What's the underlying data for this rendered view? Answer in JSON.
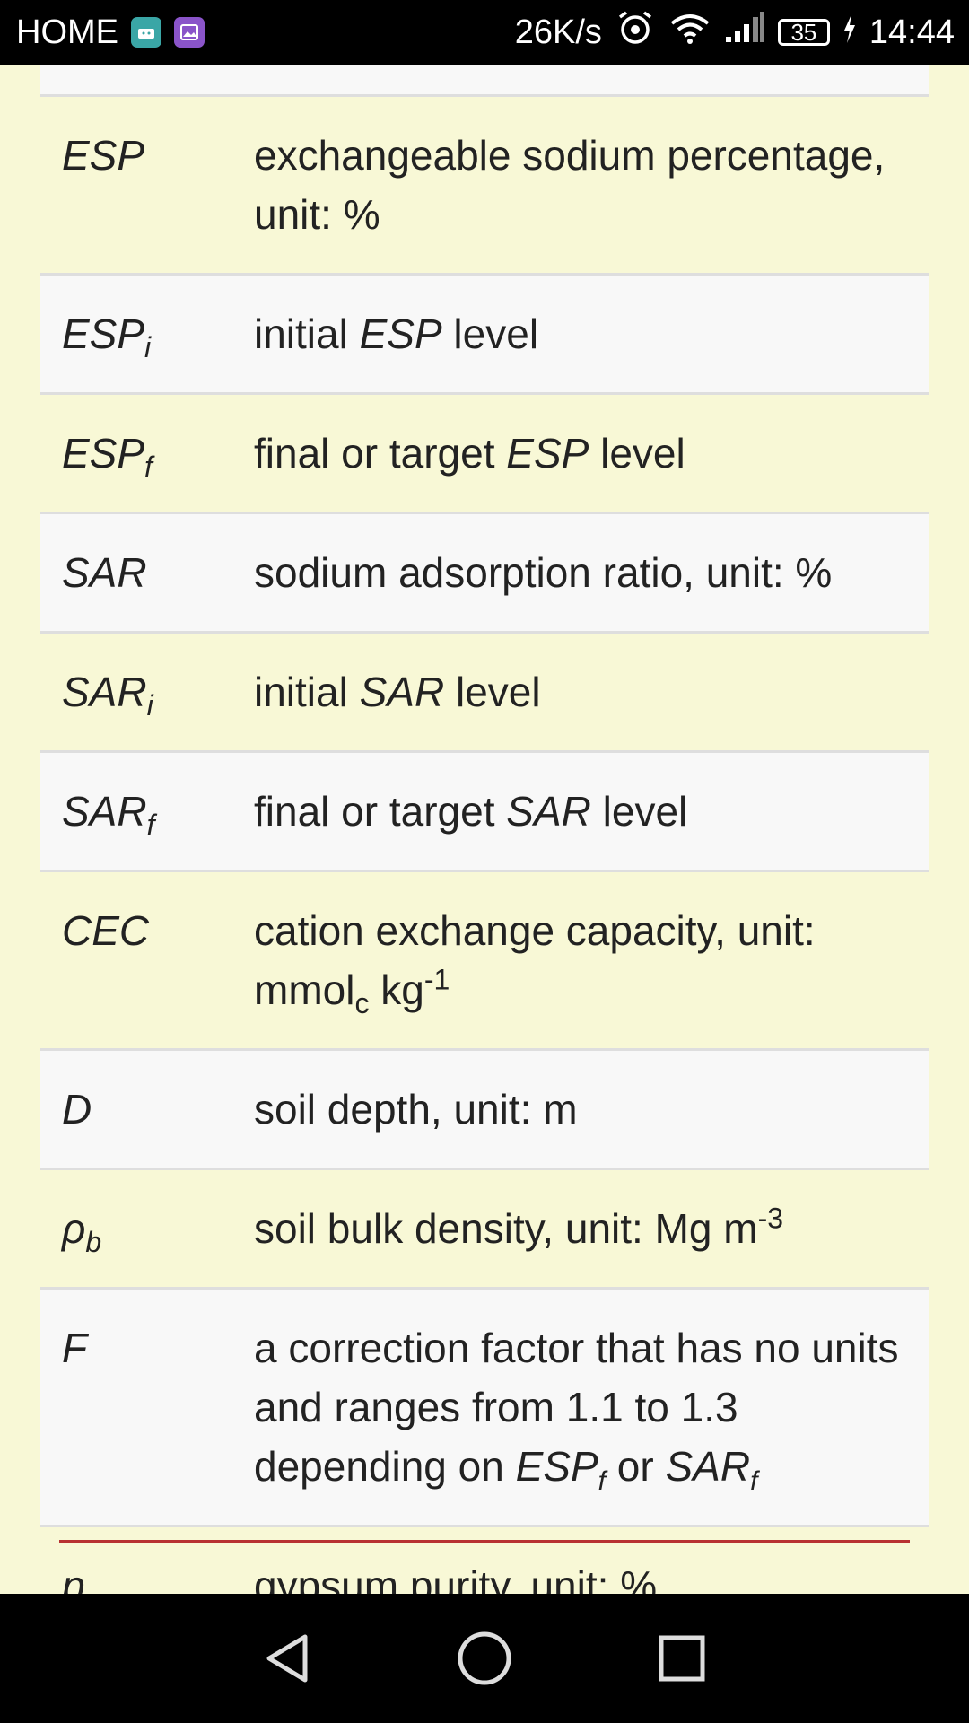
{
  "status_bar": {
    "carrier": "HOME",
    "speed": "26K/s",
    "battery": "35",
    "time": "14:44"
  },
  "table": {
    "rows": [
      {
        "symbol": "ESP",
        "desc": "exchangeable sodium percentage, unit: %"
      },
      {
        "symbol": "ESP",
        "sub": "i",
        "desc_pre": "initial ",
        "desc_it": "ESP",
        "desc_post": " level"
      },
      {
        "symbol": "ESP",
        "sub": "f",
        "desc_pre": "final or target ",
        "desc_it": "ESP",
        "desc_post": " level"
      },
      {
        "symbol": "SAR",
        "desc": "sodium adsorption ratio, unit: %"
      },
      {
        "symbol": "SAR",
        "sub": "i",
        "desc_pre": "initial ",
        "desc_it": "SAR",
        "desc_post": " level"
      },
      {
        "symbol": "SAR",
        "sub": "f",
        "desc_pre": "final or target ",
        "desc_it": "SAR",
        "desc_post": " level"
      },
      {
        "symbol": "CEC",
        "desc_pre": "cation exchange capacity, unit: mmol",
        "desc_sub": "c",
        "desc_mid": " kg",
        "desc_sup": "-1"
      },
      {
        "symbol": "D",
        "desc": "soil depth, unit: m"
      },
      {
        "symbol": "ρ",
        "sub": "b",
        "desc_pre": "soil bulk density, unit: Mg m",
        "desc_sup": "-3"
      },
      {
        "symbol": "F",
        "desc_pre": "a correction factor that has no units and ranges from 1.1 to 1.3 depending on ",
        "desc_it1": "ESP",
        "desc_sub1": "f",
        "desc_or": " or ",
        "desc_it2": "SAR",
        "desc_sub2": "f"
      },
      {
        "symbol": "p",
        "desc": "gypsum purity, unit: %"
      }
    ]
  },
  "nav": {
    "back": "back-icon",
    "home": "home-icon",
    "recents": "recents-icon"
  }
}
